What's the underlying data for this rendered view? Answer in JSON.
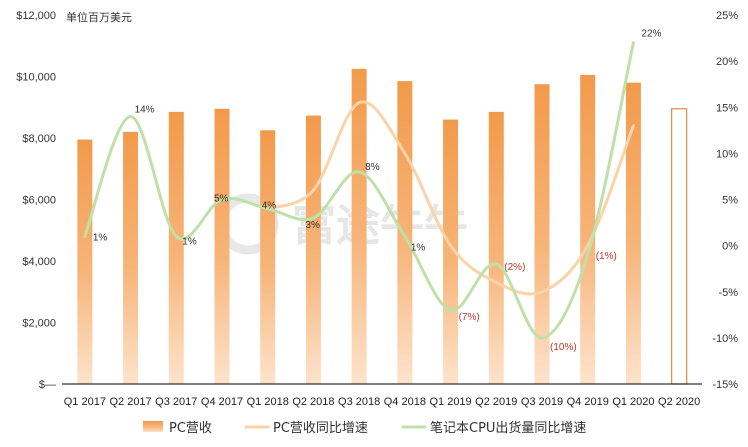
{
  "chart_data": {
    "type": "bar",
    "unit_label": "单位百万美元",
    "watermark": "富途牛牛",
    "categories": [
      "Q1 2017",
      "Q2 2017",
      "Q3 2017",
      "Q4 2017",
      "Q1 2018",
      "Q2 2018",
      "Q3 2018",
      "Q4 2018",
      "Q1 2019",
      "Q2 2019",
      "Q3 2019",
      "Q4 2019",
      "Q1 2020",
      "Q2 2020"
    ],
    "series": [
      {
        "name": "PC营收",
        "type": "bar",
        "axis": "left",
        "color": "#f29a4a",
        "values": [
          7950,
          8200,
          8850,
          8950,
          8250,
          8730,
          10250,
          9850,
          8600,
          8850,
          9750,
          10050,
          9800,
          8950
        ],
        "outlined_last": true
      },
      {
        "name": "PC营收同比增速",
        "type": "line",
        "axis": "right",
        "color": "#fbd3a8",
        "values": [
          null,
          null,
          null,
          null,
          4,
          6,
          15.5,
          10,
          0,
          -4,
          -5,
          0,
          13,
          null
        ]
      },
      {
        "name": "笔记本CPU出货量同比增速",
        "type": "line",
        "axis": "right",
        "color": "#bfe0a8",
        "values": [
          1,
          14,
          1,
          5,
          4,
          3,
          8,
          1,
          -7,
          -2,
          -10,
          -1,
          22,
          null
        ]
      }
    ],
    "data_labels": [
      {
        "index": 0,
        "text": "1%",
        "negative": false
      },
      {
        "index": 1,
        "text": "14%",
        "negative": false
      },
      {
        "index": 2,
        "text": "1%",
        "negative": false
      },
      {
        "index": 3,
        "text": "5%",
        "negative": false
      },
      {
        "index": 4,
        "text": "4%",
        "negative": false
      },
      {
        "index": 5,
        "text": "3%",
        "negative": false
      },
      {
        "index": 6,
        "text": "8%",
        "negative": false
      },
      {
        "index": 7,
        "text": "1%",
        "negative": false
      },
      {
        "index": 8,
        "text": "(7%)",
        "negative": true
      },
      {
        "index": 9,
        "text": "(2%)",
        "negative": true
      },
      {
        "index": 10,
        "text": "(10%)",
        "negative": true
      },
      {
        "index": 11,
        "text": "(1%)",
        "negative": true
      },
      {
        "index": 12,
        "text": "22%",
        "negative": false
      }
    ],
    "y_left": {
      "min": 0,
      "max": 12000,
      "ticks": [
        0,
        2000,
        4000,
        6000,
        8000,
        10000,
        12000
      ],
      "tick_labels": [
        "$—",
        "$2,000",
        "$4,000",
        "$6,000",
        "$8,000",
        "$10,000",
        "$12,000"
      ]
    },
    "y_right": {
      "min": -15,
      "max": 25,
      "ticks": [
        -15,
        -10,
        -5,
        0,
        5,
        10,
        15,
        20,
        25
      ],
      "tick_labels": [
        "-15%",
        "-10%",
        "-5%",
        "0%",
        "5%",
        "10%",
        "15%",
        "20%",
        "25%"
      ]
    },
    "colors": {
      "negative_label": "#c0392b",
      "positive_label": "#333333"
    },
    "legend": {
      "position": "bottom",
      "items": [
        "PC营收",
        "PC营收同比增速",
        "笔记本CPU出货量同比增速"
      ]
    },
    "grid": false
  }
}
